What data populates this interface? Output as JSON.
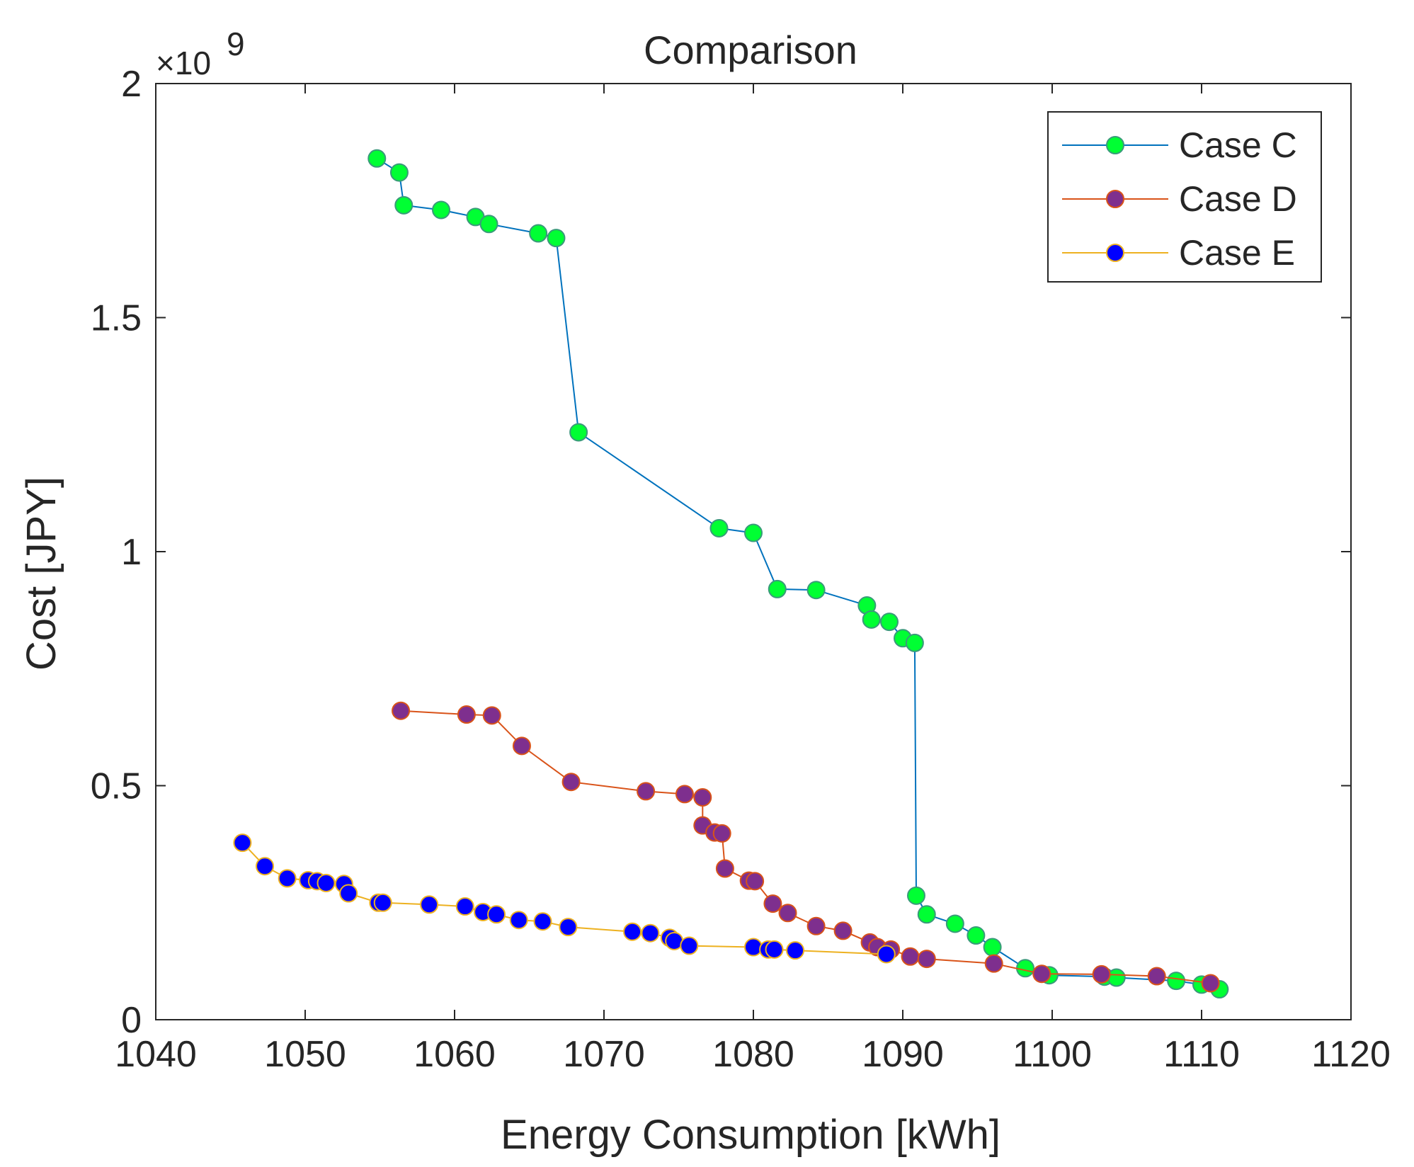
{
  "chart_data": {
    "type": "line",
    "title": "Comparison",
    "xlabel": "Energy Consumption [kWh]",
    "ylabel": "Cost [JPY]",
    "y_exponent_label": "×10",
    "y_exponent_power": "9",
    "xlim": [
      1040,
      1120
    ],
    "ylim": [
      0,
      2
    ],
    "xticks": [
      1040,
      1050,
      1060,
      1070,
      1080,
      1090,
      1100,
      1110,
      1120
    ],
    "yticks": [
      0,
      0.5,
      1,
      1.5,
      2
    ],
    "xtick_labels": [
      "1040",
      "1050",
      "1060",
      "1070",
      "1080",
      "1090",
      "1100",
      "1110",
      "1120"
    ],
    "ytick_labels": [
      "0",
      "0.5",
      "1",
      "1.5",
      "2"
    ],
    "legend_position": "top-right",
    "series": [
      {
        "name": "Case C",
        "line_color": "#0072BD",
        "marker_color": "#00ff33",
        "marker_edge": "#3a9a7a",
        "x": [
          1054.8,
          1056.3,
          1056.6,
          1059.1,
          1061.4,
          1062.3,
          1065.6,
          1066.8,
          1068.3,
          1077.7,
          1080.0,
          1081.6,
          1084.2,
          1087.6,
          1087.9,
          1089.1,
          1090.0,
          1090.8,
          1090.9,
          1091.6,
          1093.5,
          1094.9,
          1096.0,
          1098.2,
          1099.8,
          1103.5,
          1104.3,
          1108.3,
          1110.0,
          1111.2
        ],
        "y": [
          1.84,
          1.81,
          1.74,
          1.73,
          1.715,
          1.7,
          1.68,
          1.67,
          1.255,
          1.05,
          1.04,
          0.92,
          0.918,
          0.885,
          0.855,
          0.85,
          0.815,
          0.805,
          0.265,
          0.225,
          0.205,
          0.18,
          0.155,
          0.11,
          0.095,
          0.092,
          0.09,
          0.083,
          0.075,
          0.065
        ]
      },
      {
        "name": "Case D",
        "line_color": "#D95319",
        "marker_color": "#7E2F8E",
        "marker_edge": "#D95319",
        "x": [
          1056.4,
          1060.8,
          1062.5,
          1064.5,
          1067.8,
          1072.8,
          1075.4,
          1076.6,
          1076.6,
          1077.4,
          1077.9,
          1078.1,
          1079.7,
          1080.1,
          1081.3,
          1082.3,
          1084.2,
          1086.0,
          1087.8,
          1088.3,
          1089.2,
          1090.5,
          1091.6,
          1096.1,
          1099.3,
          1103.3,
          1107.0,
          1110.6
        ],
        "y": [
          0.66,
          0.652,
          0.65,
          0.585,
          0.508,
          0.488,
          0.482,
          0.475,
          0.415,
          0.4,
          0.398,
          0.323,
          0.297,
          0.296,
          0.248,
          0.228,
          0.2,
          0.19,
          0.165,
          0.155,
          0.15,
          0.135,
          0.13,
          0.12,
          0.098,
          0.097,
          0.093,
          0.078
        ]
      },
      {
        "name": "Case E",
        "line_color": "#EDB120",
        "marker_color": "#0000ff",
        "marker_edge": "#EDB120",
        "x": [
          1045.8,
          1047.3,
          1048.8,
          1050.2,
          1050.8,
          1051.4,
          1052.6,
          1052.9,
          1054.9,
          1055.2,
          1058.3,
          1060.7,
          1061.9,
          1062.8,
          1064.3,
          1065.9,
          1067.6,
          1071.9,
          1073.1,
          1074.4,
          1074.7,
          1075.7,
          1080.0,
          1081.0,
          1081.4,
          1082.8,
          1088.9
        ],
        "y": [
          0.378,
          0.328,
          0.302,
          0.298,
          0.296,
          0.292,
          0.29,
          0.27,
          0.25,
          0.25,
          0.246,
          0.242,
          0.23,
          0.225,
          0.213,
          0.21,
          0.198,
          0.188,
          0.185,
          0.175,
          0.168,
          0.158,
          0.155,
          0.15,
          0.15,
          0.148,
          0.14
        ]
      }
    ]
  }
}
